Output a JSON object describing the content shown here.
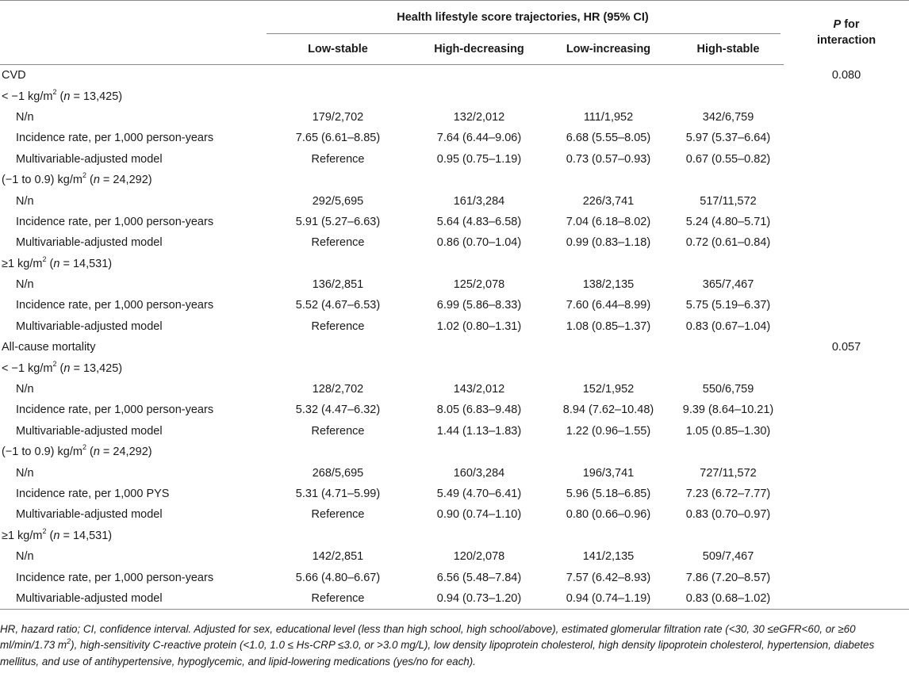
{
  "header": {
    "spanning_title": "Health lifestyle score trajectories, HR (95% CI)",
    "p_for_interaction_line1": "P",
    "p_for_interaction_line1_rest": " for",
    "p_for_interaction_line2": "interaction",
    "columns": [
      "Low-stable",
      "High-decreasing",
      "Low-increasing",
      "High-stable"
    ]
  },
  "sections": [
    {
      "title": "CVD",
      "p_interaction": "0.080",
      "groups": [
        {
          "label_pre": "< −1 kg/m",
          "label_sup": "2",
          "label_mid": " (",
          "label_n": "n",
          "label_post": " = 13,425)",
          "rows": [
            {
              "label": "N/n",
              "values": [
                "179/2,702",
                "132/2,012",
                "111/1,952",
                "342/6,759"
              ]
            },
            {
              "label": "Incidence rate, per 1,000 person-years",
              "values": [
                "7.65 (6.61–8.85)",
                "7.64 (6.44–9.06)",
                "6.68 (5.55–8.05)",
                "5.97 (5.37–6.64)"
              ]
            },
            {
              "label": "Multivariable-adjusted model",
              "values": [
                "Reference",
                "0.95 (0.75–1.19)",
                "0.73 (0.57–0.93)",
                "0.67 (0.55–0.82)"
              ]
            }
          ]
        },
        {
          "label_pre": "(−1 to 0.9) kg/m",
          "label_sup": "2",
          "label_mid": " (",
          "label_n": "n",
          "label_post": " = 24,292)",
          "rows": [
            {
              "label": "N/n",
              "values": [
                "292/5,695",
                "161/3,284",
                "226/3,741",
                "517/11,572"
              ]
            },
            {
              "label": "Incidence rate, per 1,000 person-years",
              "values": [
                "5.91 (5.27–6.63)",
                "5.64 (4.83–6.58)",
                "7.04 (6.18–8.02)",
                "5.24 (4.80–5.71)"
              ]
            },
            {
              "label": "Multivariable-adjusted model",
              "values": [
                "Reference",
                "0.86 (0.70–1.04)",
                "0.99 (0.83–1.18)",
                "0.72 (0.61–0.84)"
              ]
            }
          ]
        },
        {
          "label_pre": "≥1 kg/m",
          "label_sup": "2",
          "label_mid": " (",
          "label_n": "n",
          "label_post": " = 14,531)",
          "rows": [
            {
              "label": "N/n",
              "values": [
                "136/2,851",
                "125/2,078",
                "138/2,135",
                "365/7,467"
              ]
            },
            {
              "label": "Incidence rate, per 1,000 person-years",
              "values": [
                "5.52 (4.67–6.53)",
                "6.99 (5.86–8.33)",
                "7.60 (6.44–8.99)",
                "5.75 (5.19–6.37)"
              ]
            },
            {
              "label": "Multivariable-adjusted model",
              "values": [
                "Reference",
                "1.02 (0.80–1.31)",
                "1.08 (0.85–1.37)",
                "0.83 (0.67–1.04)"
              ]
            }
          ]
        }
      ]
    },
    {
      "title": "All-cause mortality",
      "p_interaction": "0.057",
      "groups": [
        {
          "label_pre": "< −1 kg/m",
          "label_sup": "2",
          "label_mid": " (",
          "label_n": "n",
          "label_post": " = 13,425)",
          "rows": [
            {
              "label": "N/n",
              "values": [
                "128/2,702",
                "143/2,012",
                "152/1,952",
                "550/6,759"
              ]
            },
            {
              "label": "Incidence rate, per 1,000 person-years",
              "values": [
                "5.32 (4.47–6.32)",
                "8.05 (6.83–9.48)",
                "8.94 (7.62–10.48)",
                "9.39 (8.64–10.21)"
              ]
            },
            {
              "label": "Multivariable-adjusted model",
              "values": [
                "Reference",
                "1.44 (1.13–1.83)",
                "1.22 (0.96–1.55)",
                "1.05 (0.85–1.30)"
              ]
            }
          ]
        },
        {
          "label_pre": "(−1 to 0.9) kg/m",
          "label_sup": "2",
          "label_mid": " (",
          "label_n": "n",
          "label_post": " = 24,292)",
          "rows": [
            {
              "label": "N/n",
              "values": [
                "268/5,695",
                "160/3,284",
                "196/3,741",
                "727/11,572"
              ]
            },
            {
              "label": "Incidence rate, per 1,000 PYS",
              "values": [
                "5.31 (4.71–5.99)",
                "5.49 (4.70–6.41)",
                "5.96 (5.18–6.85)",
                "7.23 (6.72–7.77)"
              ]
            },
            {
              "label": "Multivariable-adjusted model",
              "values": [
                "Reference",
                "0.90 (0.74–1.10)",
                "0.80 (0.66–0.96)",
                "0.83 (0.70–0.97)"
              ]
            }
          ]
        },
        {
          "label_pre": "≥1 kg/m",
          "label_sup": "2",
          "label_mid": " (",
          "label_n": "n",
          "label_post": " = 14,531)",
          "rows": [
            {
              "label": "N/n",
              "values": [
                "142/2,851",
                "120/2,078",
                "141/2,135",
                "509/7,467"
              ]
            },
            {
              "label": "Incidence rate, per 1,000 person-years",
              "values": [
                "5.66 (4.80–6.67)",
                "6.56 (5.48–7.84)",
                "7.57 (6.42–8.93)",
                "7.86 (7.20–8.57)"
              ]
            },
            {
              "label": "Multivariable-adjusted model",
              "values": [
                "Reference",
                "0.94 (0.73–1.20)",
                "0.94 (0.74–1.19)",
                "0.83 (0.68–1.02)"
              ]
            }
          ]
        }
      ]
    }
  ],
  "footnote": {
    "part1": "HR, hazard ratio; CI, confidence interval. Adjusted for sex, educational level (less than high school, high school/above), estimated glomerular filtration rate (<30, 30 ≤eGFR<60, or ≥60 ml/min/1.73 m",
    "sup": "2",
    "part2": "), high-sensitivity C-reactive protein (<1.0, 1.0 ≤ Hs-CRP ≤3.0, or >3.0 mg/L), low density lipoprotein cholesterol, high density lipoprotein cholesterol, hypertension, diabetes mellitus, and use of antihypertensive, hypoglycemic, and lipid-lowering medications (yes/no for each)."
  }
}
